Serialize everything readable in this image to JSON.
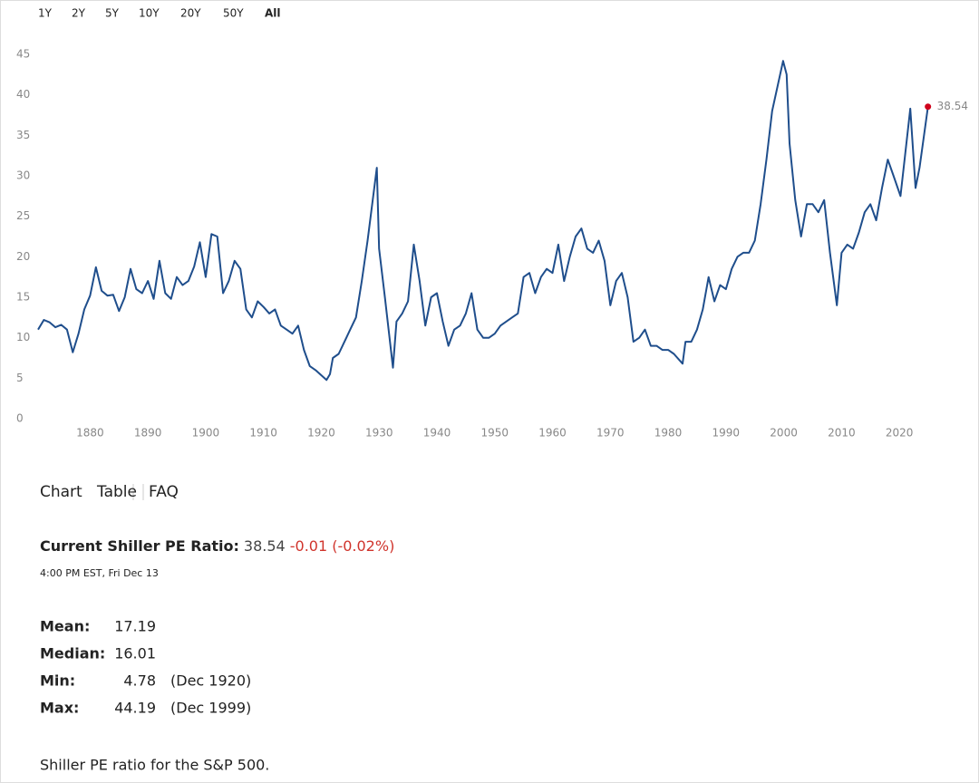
{
  "range_buttons": [
    "1Y",
    "2Y",
    "5Y",
    "10Y",
    "20Y",
    "50Y",
    "All"
  ],
  "chart_data": {
    "type": "line",
    "x": [
      1871,
      1872,
      1873,
      1874,
      1875,
      1876,
      1877,
      1878,
      1879,
      1880,
      1881,
      1882,
      1883,
      1884,
      1885,
      1886,
      1887,
      1888,
      1889,
      1890,
      1891,
      1892,
      1893,
      1894,
      1895,
      1896,
      1897,
      1898,
      1899,
      1900,
      1901,
      1902,
      1903,
      1904,
      1905,
      1906,
      1907,
      1908,
      1909,
      1910,
      1911,
      1912,
      1913,
      1914,
      1915,
      1916,
      1917,
      1918,
      1919,
      1920.9,
      1921.5,
      1922,
      1923,
      1924,
      1925,
      1926,
      1927,
      1928,
      1929.6,
      1930,
      1931,
      1932.4,
      1933,
      1934,
      1935,
      1936,
      1937,
      1938,
      1939,
      1940,
      1941,
      1942,
      1943,
      1944,
      1945,
      1946,
      1947,
      1948,
      1949,
      1950,
      1951,
      1952,
      1953,
      1954,
      1955,
      1956,
      1957,
      1958,
      1959,
      1960,
      1961,
      1962,
      1963,
      1964,
      1965,
      1966,
      1967,
      1968,
      1969,
      1970,
      1971,
      1972,
      1973,
      1974,
      1975,
      1976,
      1977,
      1978,
      1979,
      1980,
      1981,
      1982.5,
      1983,
      1984,
      1985,
      1986,
      1987,
      1988,
      1989,
      1990,
      1991,
      1992,
      1993,
      1994,
      1995,
      1996,
      1997,
      1998,
      1999.9,
      2000.5,
      2001,
      2002,
      2003,
      2004,
      2005,
      2006,
      2007,
      2008,
      2009.2,
      2010,
      2011,
      2012,
      2013,
      2014,
      2015,
      2016,
      2017,
      2018,
      2019,
      2020.2,
      2021.9,
      2022.8,
      2023.5,
      2024.95
    ],
    "series": [
      {
        "color": "#1f4e8c",
        "values": [
          11.0,
          12.2,
          11.9,
          11.3,
          11.6,
          11.0,
          8.2,
          10.5,
          13.5,
          15.2,
          18.7,
          15.8,
          15.2,
          15.3,
          13.3,
          15.0,
          18.5,
          16.0,
          15.5,
          17.0,
          14.8,
          19.5,
          15.5,
          14.8,
          17.5,
          16.5,
          17.0,
          18.8,
          21.8,
          17.5,
          22.8,
          22.5,
          15.5,
          17.0,
          19.5,
          18.5,
          13.5,
          12.5,
          14.5,
          13.8,
          13.0,
          13.5,
          11.5,
          11.0,
          10.5,
          11.5,
          8.5,
          6.5,
          6.0,
          4.78,
          5.5,
          7.5,
          8.0,
          9.5,
          11.0,
          12.5,
          17.0,
          22.0,
          31.0,
          21.0,
          15.0,
          6.3,
          12.0,
          13.0,
          14.5,
          21.5,
          17.0,
          11.5,
          15.0,
          15.5,
          12.0,
          9.0,
          11.0,
          11.5,
          13.0,
          15.5,
          11.0,
          10.0,
          10.0,
          10.5,
          11.5,
          12.0,
          12.5,
          13.0,
          17.5,
          18.0,
          15.5,
          17.5,
          18.5,
          18.0,
          21.5,
          17.0,
          20.0,
          22.5,
          23.5,
          21.0,
          20.5,
          22.0,
          19.5,
          14.0,
          17.0,
          18.0,
          15.0,
          9.5,
          10.0,
          11.0,
          9.0,
          9.0,
          8.5,
          8.5,
          8.0,
          6.8,
          9.5,
          9.5,
          11.0,
          13.5,
          17.5,
          14.5,
          16.5,
          16.0,
          18.5,
          20.0,
          20.5,
          20.5,
          22.0,
          26.5,
          32.0,
          38.0,
          44.19,
          42.5,
          34.0,
          27.0,
          22.5,
          26.5,
          26.5,
          25.5,
          27.0,
          20.5,
          14.0,
          20.5,
          21.5,
          21.0,
          23.0,
          25.5,
          26.5,
          24.5,
          28.5,
          32.0,
          30.0,
          27.5,
          38.3,
          28.5,
          31.0,
          38.54
        ]
      }
    ],
    "xlim": [
      1871,
      2025
    ],
    "ylim": [
      0,
      45
    ],
    "xticks": [
      1880,
      1890,
      1900,
      1910,
      1920,
      1930,
      1940,
      1950,
      1960,
      1970,
      1980,
      1990,
      2000,
      2010,
      2020
    ],
    "yticks": [
      0,
      5,
      10,
      15,
      20,
      25,
      30,
      35,
      40,
      45
    ],
    "marker_color": "#d0021b"
  },
  "tabs": [
    "Chart",
    "Table",
    "FAQ"
  ],
  "current": {
    "label": "Current Shiller PE Ratio:",
    "change": "-0.01 (-0.02%)",
    "timestamp": "4:00 PM EST, Fri Dec 13"
  },
  "stats": [
    {
      "label": "Mean:",
      "value": 17.19
    },
    {
      "label": "Median:",
      "value": 16.01
    },
    {
      "label": "Min:",
      "value": 4.78,
      "date": "(Dec 1920)"
    },
    {
      "label": "Max:",
      "value": 44.19,
      "date": "(Dec 1999)"
    }
  ],
  "description": "Shiller PE ratio for the S&P 500."
}
